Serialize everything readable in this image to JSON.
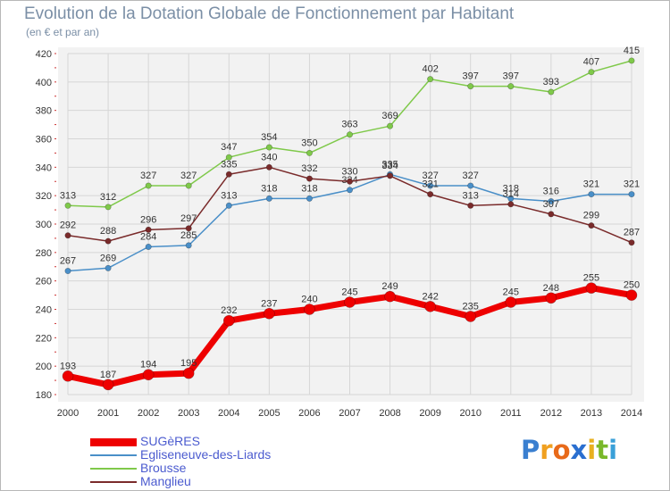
{
  "header": {
    "title": "Evolution de la Dotation Globale de Fonctionnement par Habitant",
    "subtitle": "(en € et par an)"
  },
  "chart_data": {
    "type": "line",
    "title": "Evolution de la Dotation Globale de Fonctionnement par Habitant",
    "subtitle": "(en € et par an)",
    "xlabel": "",
    "ylabel": "",
    "ylim": [
      180,
      420
    ],
    "yticks": [
      180,
      200,
      220,
      240,
      260,
      280,
      300,
      320,
      340,
      360,
      380,
      400,
      420
    ],
    "grid": true,
    "legend_position": "bottom-left",
    "categories": [
      "2000",
      "2001",
      "2002",
      "2003",
      "2004",
      "2005",
      "2006",
      "2007",
      "2008",
      "2009",
      "2010",
      "2011",
      "2012",
      "2013",
      "2014"
    ],
    "series": [
      {
        "name": "Brousse",
        "color": "#7fc94a",
        "values": [
          313,
          312,
          327,
          327,
          347,
          354,
          350,
          363,
          369,
          402,
          397,
          397,
          393,
          407,
          415
        ]
      },
      {
        "name": "Egliseneuve-des-Liards",
        "color": "#4a8fc8",
        "values": [
          267,
          269,
          284,
          285,
          313,
          318,
          318,
          324,
          335,
          327,
          327,
          318,
          316,
          321,
          321
        ]
      },
      {
        "name": "Manglieu",
        "color": "#7a2b2b",
        "values": [
          292,
          288,
          296,
          297,
          335,
          340,
          332,
          330,
          334,
          321,
          313,
          314,
          307,
          299,
          287
        ]
      },
      {
        "name": "SUGèRES",
        "color": "#ee0000",
        "values": [
          193,
          187,
          194,
          195,
          232,
          237,
          240,
          245,
          249,
          242,
          235,
          245,
          248,
          255,
          250
        ]
      }
    ]
  },
  "legend": [
    {
      "name": "SUGèRES",
      "color": "#ee0000"
    },
    {
      "name": "Egliseneuve-des-Liards",
      "color": "#4a8fc8"
    },
    {
      "name": "Brousse",
      "color": "#7fc94a"
    },
    {
      "name": "Manglieu",
      "color": "#7a2b2b"
    }
  ],
  "logo": {
    "letters": [
      "P",
      "r",
      "o",
      "x",
      "i",
      "t",
      "i"
    ],
    "colors": [
      "#3a7fd0",
      "#f0a020",
      "#e86a1a",
      "#2a6fd0",
      "#e8b020",
      "#7ab82a",
      "#3aa0d8"
    ]
  }
}
